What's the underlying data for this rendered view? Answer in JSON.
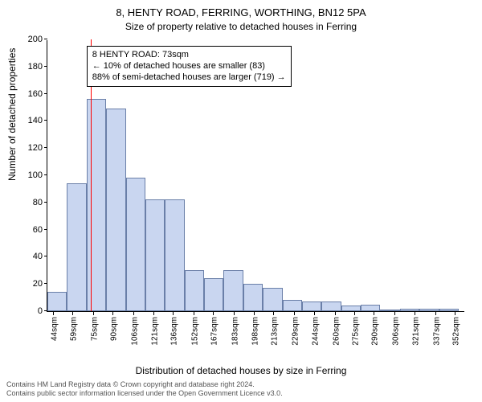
{
  "chart": {
    "type": "histogram",
    "title_main": "8, HENTY ROAD, FERRING, WORTHING, BN12 5PA",
    "title_sub": "Size of property relative to detached houses in Ferring",
    "yaxis_label": "Number of detached properties",
    "xaxis_label": "Distribution of detached houses by size in Ferring",
    "background_color": "#ffffff",
    "bar_fill": "#c9d6f0",
    "bar_border": "#6a7fa8",
    "marker_color": "#ff0000",
    "marker_x_value": 73,
    "x_min": 40,
    "x_max": 360,
    "y_min": 0,
    "y_max": 200,
    "ytick_step": 20,
    "yticks": [
      0,
      20,
      40,
      60,
      80,
      100,
      120,
      140,
      160,
      180,
      200
    ],
    "xticks": [
      {
        "v": 44,
        "label": "44sqm"
      },
      {
        "v": 59,
        "label": "59sqm"
      },
      {
        "v": 75,
        "label": "75sqm"
      },
      {
        "v": 90,
        "label": "90sqm"
      },
      {
        "v": 106,
        "label": "106sqm"
      },
      {
        "v": 121,
        "label": "121sqm"
      },
      {
        "v": 136,
        "label": "136sqm"
      },
      {
        "v": 152,
        "label": "152sqm"
      },
      {
        "v": 167,
        "label": "167sqm"
      },
      {
        "v": 183,
        "label": "183sqm"
      },
      {
        "v": 198,
        "label": "198sqm"
      },
      {
        "v": 213,
        "label": "213sqm"
      },
      {
        "v": 229,
        "label": "229sqm"
      },
      {
        "v": 244,
        "label": "244sqm"
      },
      {
        "v": 260,
        "label": "260sqm"
      },
      {
        "v": 275,
        "label": "275sqm"
      },
      {
        "v": 290,
        "label": "290sqm"
      },
      {
        "v": 306,
        "label": "306sqm"
      },
      {
        "v": 321,
        "label": "321sqm"
      },
      {
        "v": 337,
        "label": "337sqm"
      },
      {
        "v": 352,
        "label": "352sqm"
      }
    ],
    "bars": [
      {
        "x0": 40,
        "x1": 55,
        "y": 14
      },
      {
        "x0": 55,
        "x1": 70,
        "y": 94
      },
      {
        "x0": 70,
        "x1": 85,
        "y": 156
      },
      {
        "x0": 85,
        "x1": 100,
        "y": 149
      },
      {
        "x0": 100,
        "x1": 115,
        "y": 98
      },
      {
        "x0": 115,
        "x1": 130,
        "y": 82
      },
      {
        "x0": 130,
        "x1": 145,
        "y": 82
      },
      {
        "x0": 145,
        "x1": 160,
        "y": 30
      },
      {
        "x0": 160,
        "x1": 175,
        "y": 24
      },
      {
        "x0": 175,
        "x1": 190,
        "y": 30
      },
      {
        "x0": 190,
        "x1": 205,
        "y": 20
      },
      {
        "x0": 205,
        "x1": 220,
        "y": 17
      },
      {
        "x0": 220,
        "x1": 235,
        "y": 8
      },
      {
        "x0": 235,
        "x1": 250,
        "y": 7
      },
      {
        "x0": 250,
        "x1": 265,
        "y": 7
      },
      {
        "x0": 265,
        "x1": 280,
        "y": 4
      },
      {
        "x0": 280,
        "x1": 295,
        "y": 5
      },
      {
        "x0": 295,
        "x1": 310,
        "y": 1
      },
      {
        "x0": 310,
        "x1": 325,
        "y": 2
      },
      {
        "x0": 325,
        "x1": 340,
        "y": 2
      },
      {
        "x0": 340,
        "x1": 355,
        "y": 2
      }
    ],
    "annotation": {
      "lines": [
        "8 HENTY ROAD: 73sqm",
        "← 10% of detached houses are smaller (83)",
        "88% of semi-detached houses are larger (719) →"
      ],
      "box_left_value": 70,
      "box_top_value": 196
    }
  },
  "footer": {
    "line1": "Contains HM Land Registry data © Crown copyright and database right 2024.",
    "line2": "Contains public sector information licensed under the Open Government Licence v3.0."
  }
}
